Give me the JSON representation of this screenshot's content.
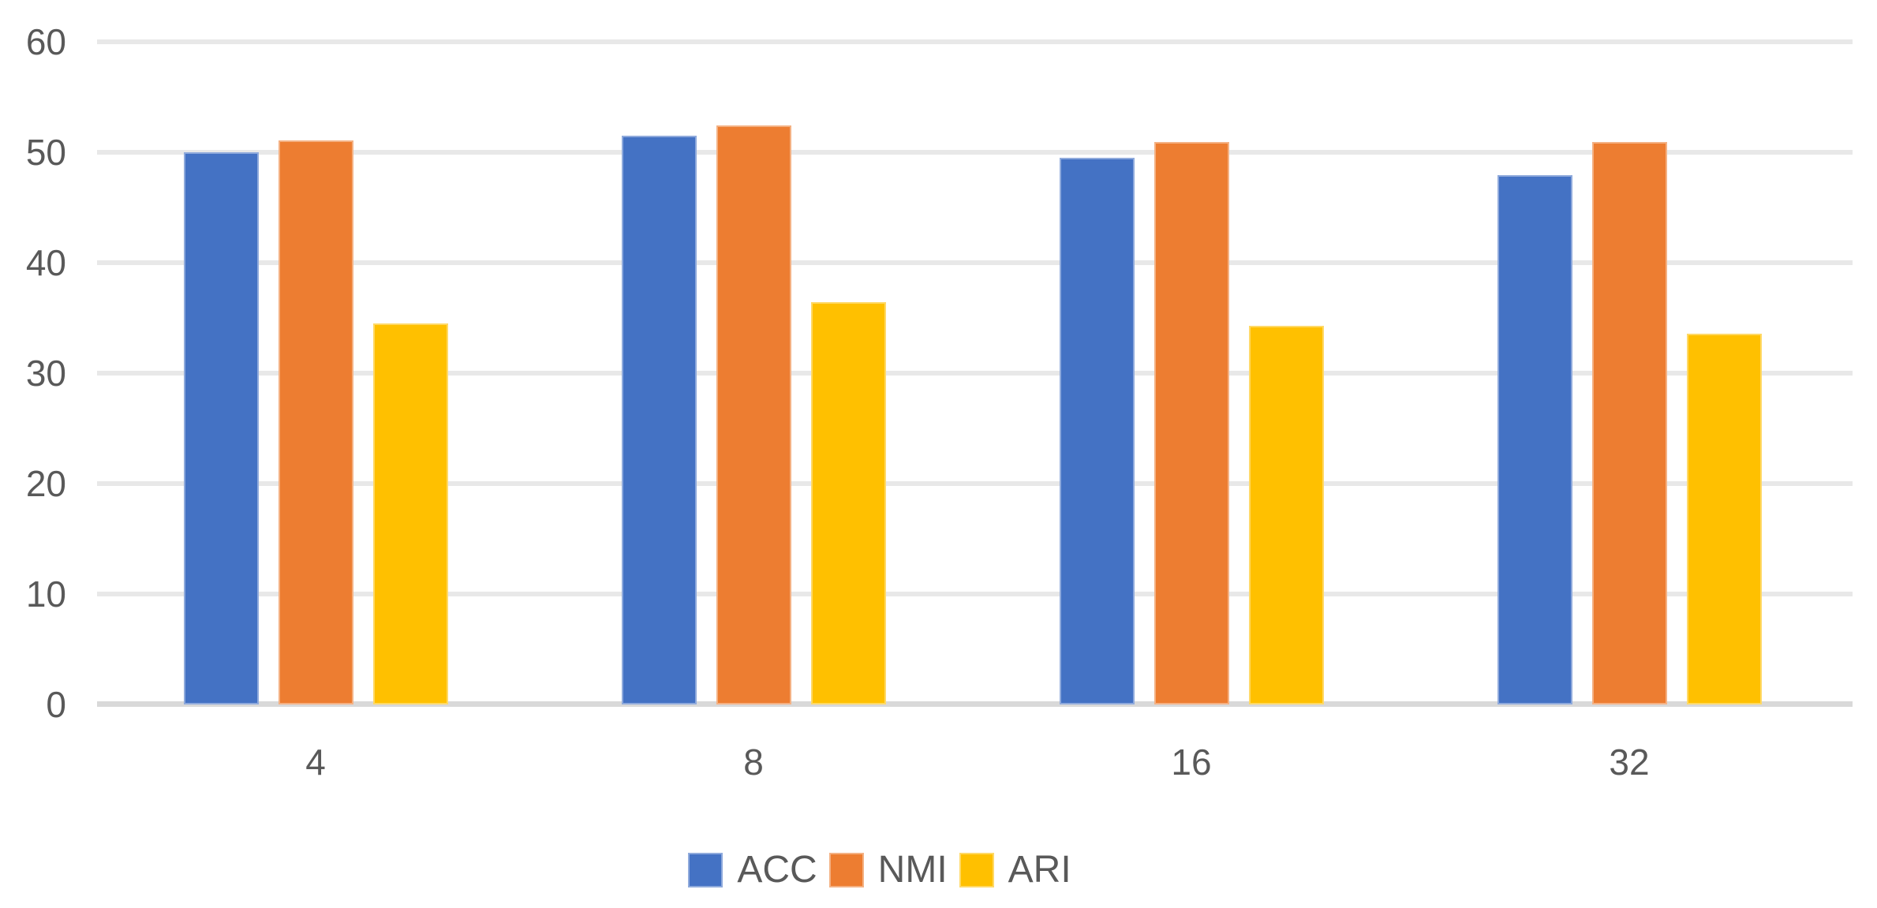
{
  "chart_data": {
    "type": "bar",
    "title": "",
    "xlabel": "",
    "ylabel": "",
    "categories": [
      "4",
      "8",
      "16",
      "32"
    ],
    "series": [
      {
        "name": "ACC",
        "color": "#4472C4",
        "edge_color": "#8FAADC",
        "values": [
          50.0,
          51.5,
          49.5,
          47.9
        ]
      },
      {
        "name": "NMI",
        "color": "#ED7D31",
        "edge_color": "#F4B183",
        "values": [
          51.1,
          52.4,
          50.9,
          50.9
        ]
      },
      {
        "name": "ARI",
        "color": "#FFC000",
        "edge_color": "#FFD966",
        "values": [
          34.5,
          36.4,
          34.3,
          33.6
        ]
      }
    ],
    "ylim": [
      0,
      60
    ],
    "yticks": [
      0,
      10,
      20,
      30,
      40,
      50,
      60
    ],
    "grid": true,
    "legend_position": "bottom",
    "colors": {
      "gridline": "#E8E8E8",
      "axis_line": "#D9D9D9",
      "tick_text": "#595959",
      "legend_text": "#595959",
      "background": "#FFFFFF"
    }
  }
}
